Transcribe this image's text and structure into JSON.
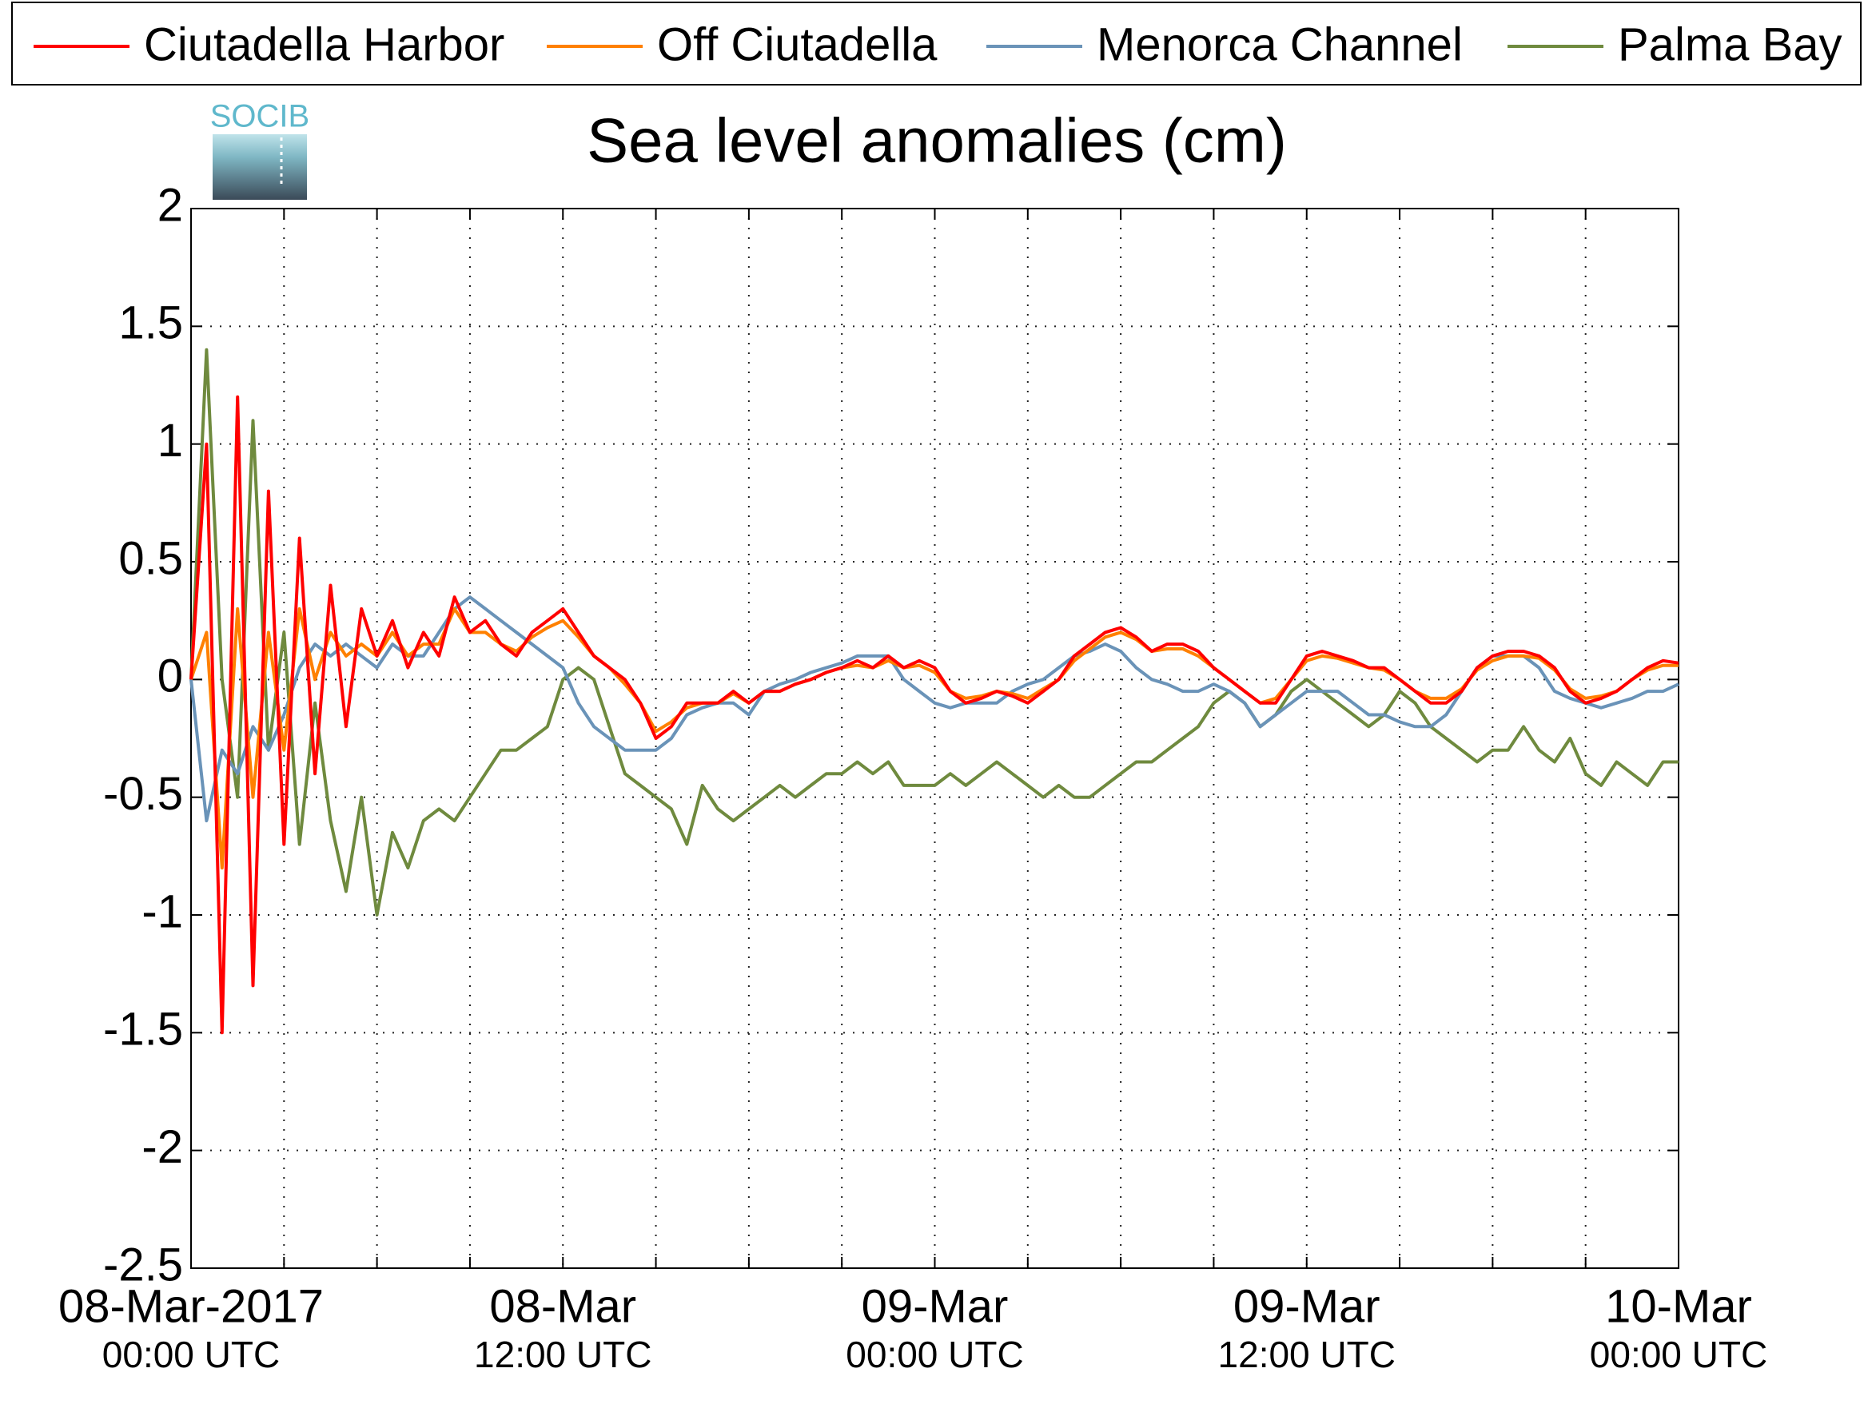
{
  "chart_data": {
    "type": "line",
    "title": "Sea level anomalies (cm)",
    "logo": "SOCIB",
    "x": [
      0,
      0.5,
      1,
      1.5,
      2,
      2.5,
      3,
      3.5,
      4,
      4.5,
      5,
      5.5,
      6,
      6.5,
      7,
      7.5,
      8,
      8.5,
      9,
      9.5,
      10,
      10.5,
      11,
      11.5,
      12,
      12.5,
      13,
      13.5,
      14,
      14.5,
      15,
      15.5,
      16,
      16.5,
      17,
      17.5,
      18,
      18.5,
      19,
      19.5,
      20,
      20.5,
      21,
      21.5,
      22,
      22.5,
      23,
      23.5,
      24,
      24.5,
      25,
      25.5,
      26,
      26.5,
      27,
      27.5,
      28,
      28.5,
      29,
      29.5,
      30,
      30.5,
      31,
      31.5,
      32,
      32.5,
      33,
      33.5,
      34,
      34.5,
      35,
      35.5,
      36,
      36.5,
      37,
      37.5,
      38,
      38.5,
      39,
      39.5,
      40,
      40.5,
      41,
      41.5,
      42,
      42.5,
      43,
      43.5,
      44,
      44.5,
      45,
      45.5,
      46,
      46.5,
      47,
      47.5,
      48
    ],
    "series": [
      {
        "name": "Ciutadella Harbor",
        "color": "#ff0000",
        "values": [
          0,
          1.0,
          -1.5,
          1.2,
          -1.3,
          0.8,
          -0.7,
          0.6,
          -0.4,
          0.4,
          -0.2,
          0.3,
          0.1,
          0.25,
          0.05,
          0.2,
          0.1,
          0.35,
          0.2,
          0.25,
          0.15,
          0.1,
          0.2,
          0.25,
          0.3,
          0.2,
          0.1,
          0.05,
          0.0,
          -0.1,
          -0.25,
          -0.2,
          -0.1,
          -0.1,
          -0.1,
          -0.05,
          -0.1,
          -0.05,
          -0.05,
          -0.02,
          0,
          0.03,
          0.05,
          0.08,
          0.05,
          0.1,
          0.05,
          0.08,
          0.05,
          -0.05,
          -0.1,
          -0.08,
          -0.05,
          -0.07,
          -0.1,
          -0.05,
          0.0,
          0.1,
          0.15,
          0.2,
          0.22,
          0.18,
          0.12,
          0.15,
          0.15,
          0.12,
          0.05,
          0.0,
          -0.05,
          -0.1,
          -0.1,
          0.0,
          0.1,
          0.12,
          0.1,
          0.08,
          0.05,
          0.05,
          0.0,
          -0.05,
          -0.1,
          -0.1,
          -0.05,
          0.05,
          0.1,
          0.12,
          0.12,
          0.1,
          0.05,
          -0.05,
          -0.1,
          -0.08,
          -0.05,
          0.0,
          0.05,
          0.08,
          0.07
        ]
      },
      {
        "name": "Off Ciutadella",
        "color": "#ff8000",
        "values": [
          0,
          0.2,
          -0.8,
          0.3,
          -0.5,
          0.2,
          -0.3,
          0.3,
          0.0,
          0.2,
          0.1,
          0.15,
          0.1,
          0.2,
          0.1,
          0.15,
          0.15,
          0.3,
          0.2,
          0.2,
          0.15,
          0.12,
          0.18,
          0.22,
          0.25,
          0.18,
          0.1,
          0.05,
          -0.02,
          -0.1,
          -0.22,
          -0.18,
          -0.12,
          -0.1,
          -0.1,
          -0.06,
          -0.1,
          -0.05,
          -0.05,
          -0.02,
          0.0,
          0.03,
          0.05,
          0.06,
          0.05,
          0.08,
          0.05,
          0.06,
          0.03,
          -0.05,
          -0.08,
          -0.07,
          -0.05,
          -0.06,
          -0.08,
          -0.04,
          0.0,
          0.08,
          0.13,
          0.18,
          0.2,
          0.17,
          0.12,
          0.13,
          0.13,
          0.1,
          0.05,
          0.0,
          -0.05,
          -0.1,
          -0.08,
          0.0,
          0.08,
          0.1,
          0.09,
          0.07,
          0.05,
          0.04,
          0.0,
          -0.05,
          -0.08,
          -0.08,
          -0.04,
          0.04,
          0.08,
          0.1,
          0.1,
          0.09,
          0.04,
          -0.04,
          -0.08,
          -0.07,
          -0.05,
          0.0,
          0.04,
          0.06,
          0.06
        ]
      },
      {
        "name": "Menorca Channel",
        "color": "#6a93b8",
        "values": [
          0,
          -0.6,
          -0.3,
          -0.4,
          -0.2,
          -0.3,
          -0.15,
          0.05,
          0.15,
          0.1,
          0.15,
          0.1,
          0.05,
          0.15,
          0.1,
          0.1,
          0.2,
          0.3,
          0.35,
          0.3,
          0.25,
          0.2,
          0.15,
          0.1,
          0.05,
          -0.1,
          -0.2,
          -0.25,
          -0.3,
          -0.3,
          -0.3,
          -0.25,
          -0.15,
          -0.12,
          -0.1,
          -0.1,
          -0.15,
          -0.05,
          -0.02,
          0,
          0.03,
          0.05,
          0.07,
          0.1,
          0.1,
          0.1,
          0.0,
          -0.05,
          -0.1,
          -0.12,
          -0.1,
          -0.1,
          -0.1,
          -0.05,
          -0.02,
          0.0,
          0.05,
          0.1,
          0.12,
          0.15,
          0.12,
          0.05,
          0.0,
          -0.02,
          -0.05,
          -0.05,
          -0.02,
          -0.05,
          -0.1,
          -0.2,
          -0.15,
          -0.1,
          -0.05,
          -0.05,
          -0.05,
          -0.1,
          -0.15,
          -0.15,
          -0.18,
          -0.2,
          -0.2,
          -0.15,
          -0.05,
          0.05,
          0.1,
          0.1,
          0.1,
          0.05,
          -0.05,
          -0.08,
          -0.1,
          -0.12,
          -0.1,
          -0.08,
          -0.05,
          -0.05,
          -0.02
        ]
      },
      {
        "name": "Palma Bay",
        "color": "#6f8a3e",
        "values": [
          0,
          1.4,
          0.0,
          -0.5,
          1.1,
          -0.3,
          0.2,
          -0.7,
          -0.1,
          -0.6,
          -0.9,
          -0.5,
          -1.0,
          -0.65,
          -0.8,
          -0.6,
          -0.55,
          -0.6,
          -0.5,
          -0.4,
          -0.3,
          -0.3,
          -0.25,
          -0.2,
          0.0,
          0.05,
          0.0,
          -0.2,
          -0.4,
          -0.45,
          -0.5,
          -0.55,
          -0.7,
          -0.45,
          -0.55,
          -0.6,
          -0.55,
          -0.5,
          -0.45,
          -0.5,
          -0.45,
          -0.4,
          -0.4,
          -0.35,
          -0.4,
          -0.35,
          -0.45,
          -0.45,
          -0.45,
          -0.4,
          -0.45,
          -0.4,
          -0.35,
          -0.4,
          -0.45,
          -0.5,
          -0.45,
          -0.5,
          -0.5,
          -0.45,
          -0.4,
          -0.35,
          -0.35,
          -0.3,
          -0.25,
          -0.2,
          -0.1,
          -0.05,
          -0.1,
          -0.2,
          -0.15,
          -0.05,
          0.0,
          -0.05,
          -0.1,
          -0.15,
          -0.2,
          -0.15,
          -0.05,
          -0.1,
          -0.2,
          -0.25,
          -0.3,
          -0.35,
          -0.3,
          -0.3,
          -0.2,
          -0.3,
          -0.35,
          -0.25,
          -0.4,
          -0.45,
          -0.35,
          -0.4,
          -0.45,
          -0.35,
          -0.35
        ]
      }
    ],
    "xlim": [
      0,
      48
    ],
    "xticks": [
      {
        "value": 0,
        "label": [
          "08-Mar-2017",
          "00:00 UTC"
        ]
      },
      {
        "value": 3,
        "label": null
      },
      {
        "value": 6,
        "label": null
      },
      {
        "value": 9,
        "label": null
      },
      {
        "value": 12,
        "label": [
          "08-Mar",
          "12:00 UTC"
        ]
      },
      {
        "value": 15,
        "label": null
      },
      {
        "value": 18,
        "label": null
      },
      {
        "value": 21,
        "label": null
      },
      {
        "value": 24,
        "label": [
          "09-Mar",
          "00:00 UTC"
        ]
      },
      {
        "value": 27,
        "label": null
      },
      {
        "value": 30,
        "label": null
      },
      {
        "value": 33,
        "label": null
      },
      {
        "value": 36,
        "label": [
          "09-Mar",
          "12:00 UTC"
        ]
      },
      {
        "value": 39,
        "label": null
      },
      {
        "value": 42,
        "label": null
      },
      {
        "value": 45,
        "label": null
      },
      {
        "value": 48,
        "label": [
          "10-Mar",
          "00:00 UTC"
        ]
      }
    ],
    "ylim": [
      -2.5,
      2
    ],
    "yticks": [
      -2.5,
      -2,
      -1.5,
      -1,
      -0.5,
      0,
      0.5,
      1,
      1.5,
      2
    ],
    "grid": true,
    "legend": "top"
  }
}
